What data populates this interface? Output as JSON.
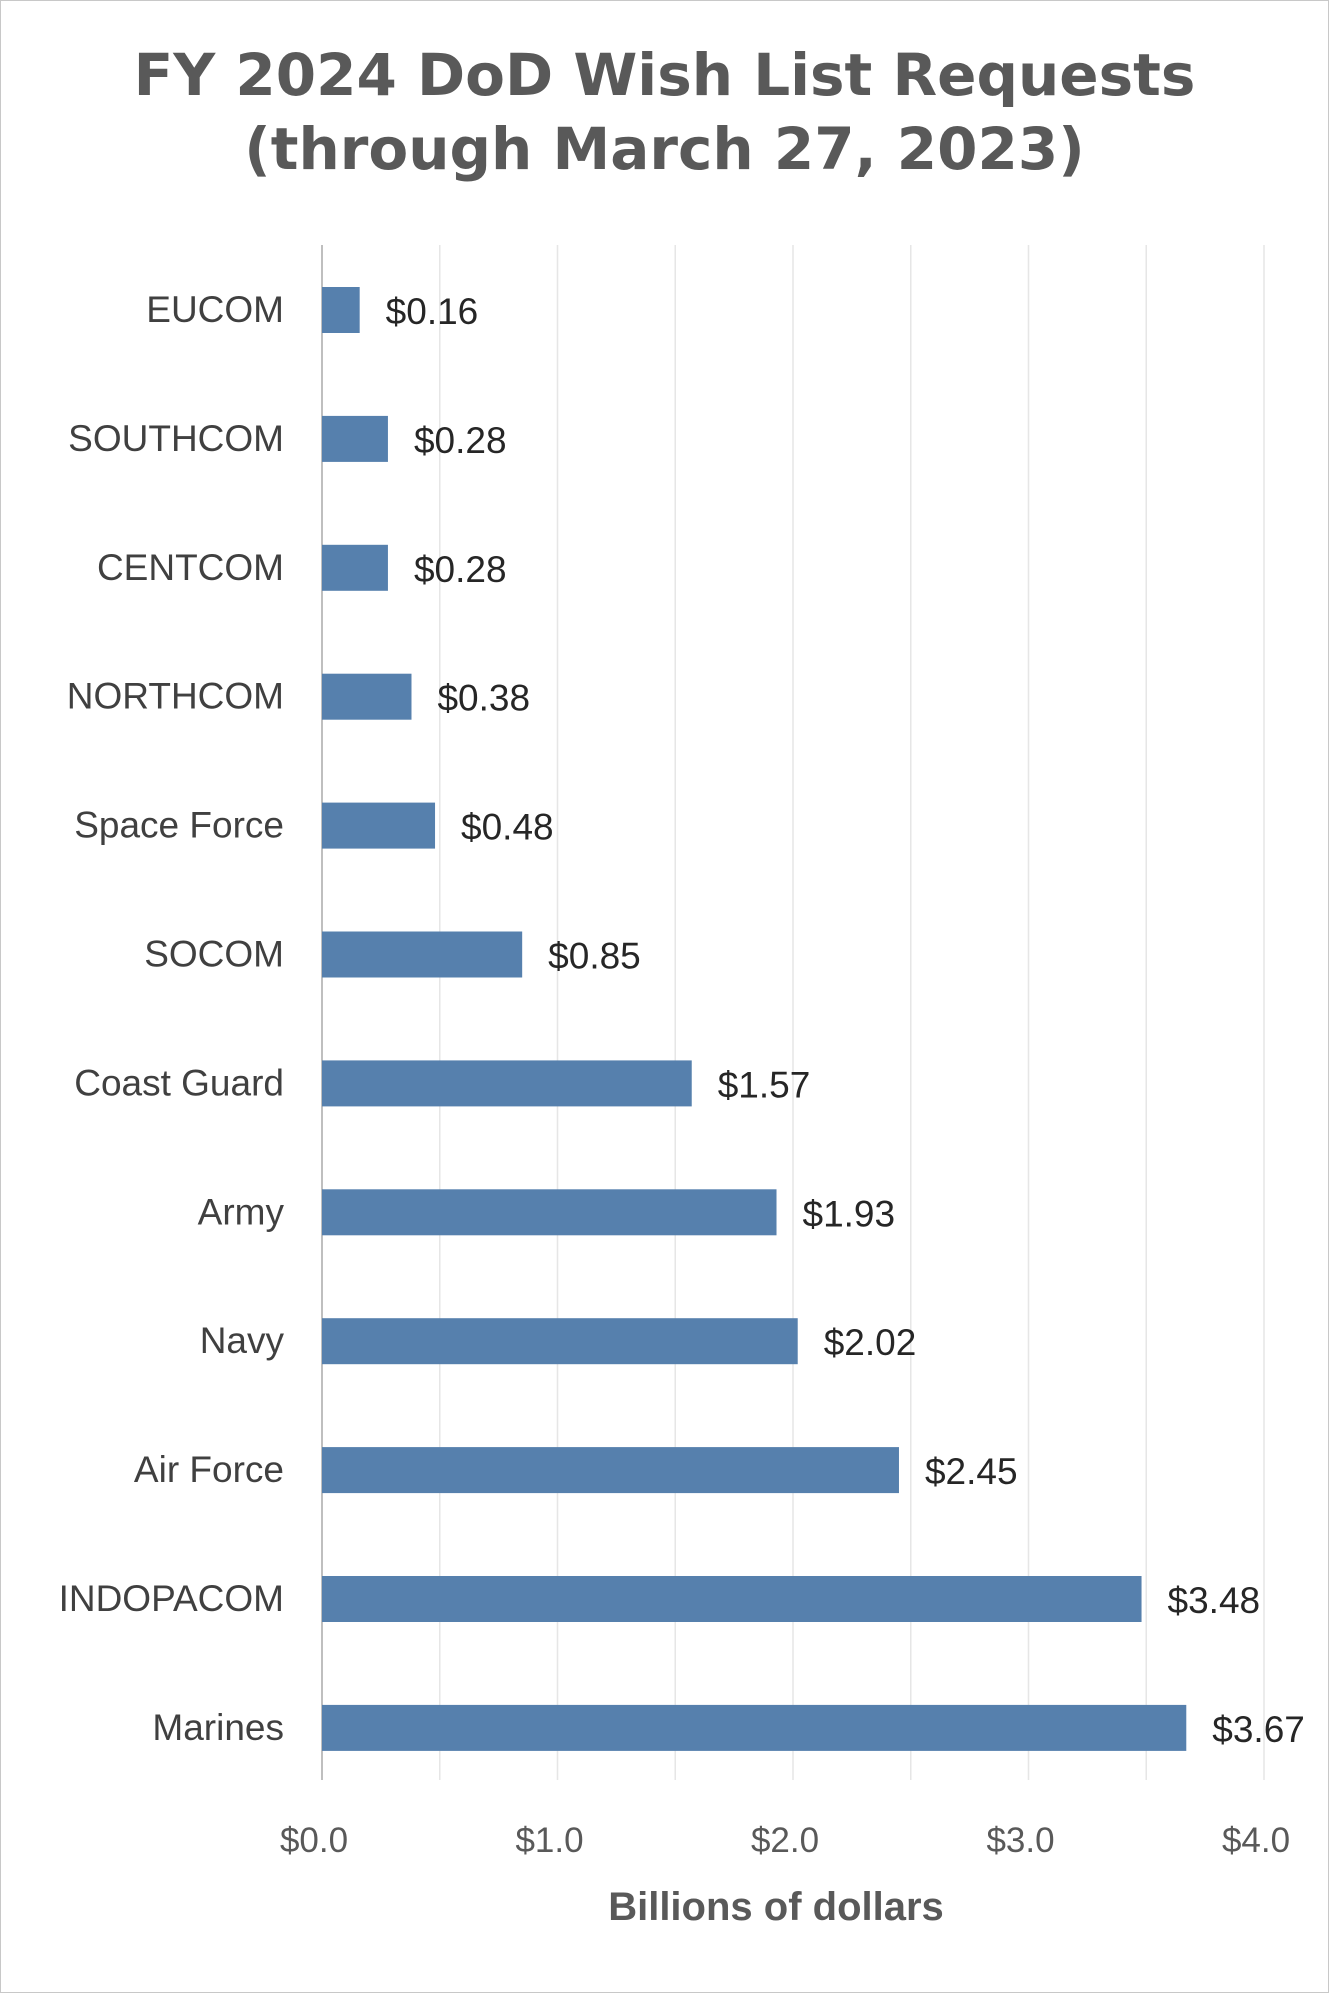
{
  "chart_data": {
    "type": "bar",
    "orientation": "horizontal",
    "title": "FY 2024 DoD Wish List Requests",
    "subtitle": "(through March 27, 2023)",
    "xlabel": "Billions of dollars",
    "ylabel": "",
    "xlim": [
      0,
      4
    ],
    "grid": true,
    "legend": "none",
    "bar_color": "#5680ad",
    "categories": [
      "EUCOM",
      "SOUTHCOM",
      "CENTCOM",
      "NORTHCOM",
      "Space Force",
      "SOCOM",
      "Coast Guard",
      "Army",
      "Navy",
      "Air Force",
      "INDOPACOM",
      "Marines"
    ],
    "values": [
      0.16,
      0.28,
      0.28,
      0.38,
      0.48,
      0.85,
      1.57,
      1.93,
      2.02,
      2.45,
      3.48,
      3.67
    ],
    "data_labels": [
      "$0.16",
      "$0.28",
      "$0.28",
      "$0.38",
      "$0.48",
      "$0.85",
      "$1.57",
      "$1.93",
      "$2.02",
      "$2.45",
      "$3.48",
      "$3.67"
    ],
    "x_ticks": [
      0,
      1,
      2,
      3,
      4
    ],
    "x_tick_labels": [
      "$0.0",
      "$1.0",
      "$2.0",
      "$3.0",
      "$4.0"
    ]
  }
}
